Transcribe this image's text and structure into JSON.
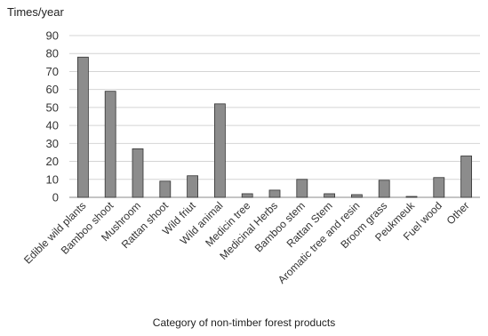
{
  "chart_data": {
    "type": "bar",
    "title": "",
    "ylabel": "Times/year",
    "xlabel": "Category of non-timber forest products",
    "ylim": [
      0,
      90
    ],
    "yticks": [
      0,
      10,
      20,
      30,
      40,
      50,
      60,
      70,
      80,
      90
    ],
    "grid": true,
    "legend": "none",
    "categories": [
      "Edible wild plants",
      "Bamboo shoot",
      "Mushroom",
      "Rattan shoot",
      "Wild friut",
      "Wild animal",
      "Medicin tree",
      "Medicinal Herbs",
      "Bamboo stem",
      "Rattan Stem",
      "Aromatic tree and resin",
      "Broom grass",
      "Peukmeuk",
      "Fuel wood",
      "Other"
    ],
    "values": [
      78,
      59,
      27,
      9,
      12,
      52,
      2,
      4,
      10,
      2,
      1.5,
      9.5,
      0.5,
      11,
      23
    ],
    "bar_color": "#8c8c8c",
    "bar_edge_color": "#333333",
    "grid_color": "#d4d4d4"
  }
}
